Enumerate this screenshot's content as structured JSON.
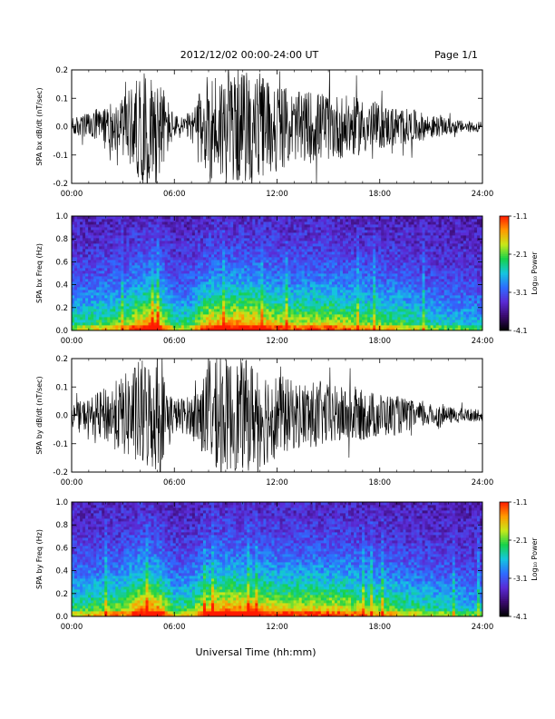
{
  "header": {
    "title": "2012/12/02  00:00-24:00 UT",
    "page": "Page 1/1"
  },
  "footer": {
    "xlabel": "Universal Time (hh:mm)"
  },
  "chart_data": [
    {
      "type": "line",
      "ylabel": "SPA bx dB/dt (nT/sec)",
      "xlabel": "",
      "x_ticks": [
        "00:00",
        "06:00",
        "12:00",
        "18:00",
        "24:00"
      ],
      "xlim": [
        0,
        24
      ],
      "ylim": [
        -0.2,
        0.2
      ],
      "y_ticks": [
        "-0.2",
        "-0.1",
        "0.0",
        "0.1",
        "0.2"
      ],
      "y_tick_values": [
        -0.2,
        -0.1,
        0.0,
        0.1,
        0.2
      ],
      "series_color": "#000000",
      "activity_hours": [
        0,
        1,
        2,
        3,
        4,
        5,
        6,
        7,
        8,
        9,
        10,
        11,
        12,
        13,
        14,
        15,
        16,
        17,
        18,
        19,
        20,
        21,
        22,
        23,
        24
      ],
      "activity_amplitude": [
        0.03,
        0.05,
        0.08,
        0.1,
        0.19,
        0.2,
        0.04,
        0.05,
        0.2,
        0.2,
        0.2,
        0.19,
        0.16,
        0.12,
        0.13,
        0.12,
        0.11,
        0.1,
        0.08,
        0.07,
        0.06,
        0.04,
        0.03,
        0.02,
        0.02
      ]
    },
    {
      "type": "heatmap",
      "ylabel": "SPA bx Freq (Hz)",
      "xlabel": "",
      "x_ticks": [
        "00:00",
        "06:00",
        "12:00",
        "18:00",
        "24:00"
      ],
      "xlim": [
        0,
        24
      ],
      "ylim": [
        0,
        1
      ],
      "y_ticks": [
        "0.0",
        "0.2",
        "0.4",
        "0.6",
        "0.8",
        "1.0"
      ],
      "y_tick_values": [
        0,
        0.2,
        0.4,
        0.6,
        0.8,
        1.0
      ],
      "colorbar": {
        "label": "Log₁₀ Power",
        "range": [
          -4.1,
          -1.1
        ],
        "ticks": [
          "-1.1",
          "-2.1",
          "-3.1",
          "-4.1"
        ],
        "tick_values": [
          -1.1,
          -2.1,
          -3.1,
          -4.1
        ],
        "colors": [
          "#000000",
          "#3a0a6e",
          "#5a2bd6",
          "#2e6cff",
          "#14c6e0",
          "#18d24a",
          "#c8e81a",
          "#ff9a00",
          "#ff1a00"
        ]
      },
      "activity_hours": [
        0,
        1,
        2,
        3,
        4,
        5,
        6,
        7,
        8,
        9,
        10,
        11,
        12,
        13,
        14,
        15,
        16,
        17,
        18,
        19,
        20,
        21,
        22,
        23,
        24
      ],
      "activity_amplitude": [
        0.45,
        0.5,
        0.55,
        0.6,
        0.8,
        0.85,
        0.45,
        0.5,
        0.8,
        0.8,
        0.85,
        0.8,
        0.72,
        0.68,
        0.7,
        0.7,
        0.66,
        0.62,
        0.58,
        0.55,
        0.5,
        0.45,
        0.4,
        0.38,
        0.35
      ]
    },
    {
      "type": "line",
      "ylabel": "SPA by dB/dt (nT/sec)",
      "xlabel": "",
      "x_ticks": [
        "00:00",
        "06:00",
        "12:00",
        "18:00",
        "24:00"
      ],
      "xlim": [
        0,
        24
      ],
      "ylim": [
        -0.2,
        0.2
      ],
      "y_ticks": [
        "-0.2",
        "-0.1",
        "0.0",
        "0.1",
        "0.2"
      ],
      "y_tick_values": [
        -0.2,
        -0.1,
        0.0,
        0.1,
        0.2
      ],
      "series_color": "#000000",
      "activity_hours": [
        0,
        1,
        2,
        3,
        4,
        5,
        6,
        7,
        8,
        9,
        10,
        11,
        12,
        13,
        14,
        15,
        16,
        17,
        18,
        19,
        20,
        21,
        22,
        23,
        24
      ],
      "activity_amplitude": [
        0.04,
        0.06,
        0.1,
        0.14,
        0.2,
        0.2,
        0.06,
        0.07,
        0.18,
        0.2,
        0.2,
        0.19,
        0.15,
        0.12,
        0.12,
        0.11,
        0.1,
        0.09,
        0.08,
        0.07,
        0.05,
        0.04,
        0.03,
        0.025,
        0.02
      ]
    },
    {
      "type": "heatmap",
      "ylabel": "SPA by Freq (Hz)",
      "xlabel": "",
      "x_ticks": [
        "00:00",
        "06:00",
        "12:00",
        "18:00",
        "24:00"
      ],
      "xlim": [
        0,
        24
      ],
      "ylim": [
        0,
        1
      ],
      "y_ticks": [
        "0.0",
        "0.2",
        "0.4",
        "0.6",
        "0.8",
        "1.0"
      ],
      "y_tick_values": [
        0,
        0.2,
        0.4,
        0.6,
        0.8,
        1.0
      ],
      "colorbar": {
        "label": "Log₁₀ Power",
        "range": [
          -4.1,
          -1.1
        ],
        "ticks": [
          "-1.1",
          "-2.1",
          "-3.1",
          "-4.1"
        ],
        "tick_values": [
          -1.1,
          -2.1,
          -3.1,
          -4.1
        ],
        "colors": [
          "#000000",
          "#3a0a6e",
          "#5a2bd6",
          "#2e6cff",
          "#14c6e0",
          "#18d24a",
          "#c8e81a",
          "#ff9a00",
          "#ff1a00"
        ]
      },
      "activity_hours": [
        0,
        1,
        2,
        3,
        4,
        5,
        6,
        7,
        8,
        9,
        10,
        11,
        12,
        13,
        14,
        15,
        16,
        17,
        18,
        19,
        20,
        21,
        22,
        23,
        24
      ],
      "activity_amplitude": [
        0.5,
        0.55,
        0.6,
        0.65,
        0.85,
        0.85,
        0.5,
        0.55,
        0.8,
        0.85,
        0.85,
        0.8,
        0.75,
        0.72,
        0.74,
        0.72,
        0.7,
        0.66,
        0.6,
        0.56,
        0.52,
        0.47,
        0.43,
        0.4,
        0.38
      ]
    }
  ]
}
